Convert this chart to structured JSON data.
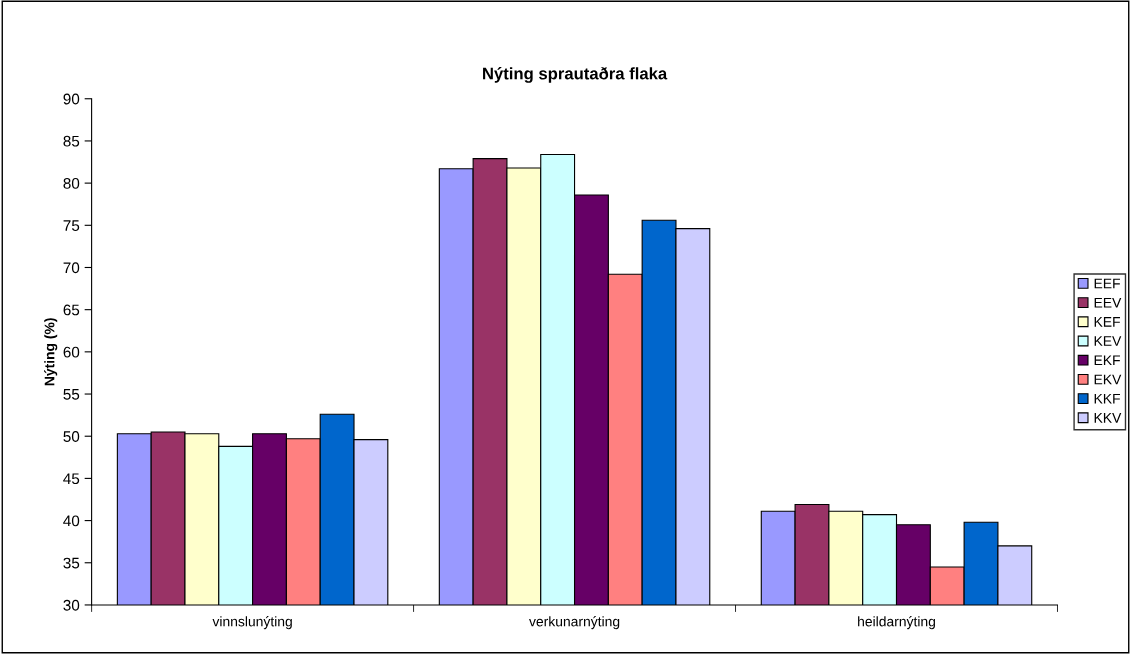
{
  "chart_data": {
    "type": "bar",
    "title": "Nýting sprautaðra flaka",
    "ylabel": "Nýting (%)",
    "categories": [
      "vinnslunýting",
      "verkunarnýting",
      "heildarnýting"
    ],
    "series": [
      {
        "name": "EEF",
        "color": "#9999ff",
        "values": [
          50.3,
          81.7,
          41.1
        ]
      },
      {
        "name": "EEV",
        "color": "#993366",
        "values": [
          50.5,
          82.9,
          41.9
        ]
      },
      {
        "name": "KEF",
        "color": "#ffffcc",
        "values": [
          50.3,
          81.8,
          41.1
        ]
      },
      {
        "name": "KEV",
        "color": "#ccffff",
        "values": [
          48.8,
          83.4,
          40.7
        ]
      },
      {
        "name": "EKF",
        "color": "#660066",
        "values": [
          50.3,
          78.6,
          39.5
        ]
      },
      {
        "name": "EKV",
        "color": "#ff8080",
        "values": [
          49.7,
          69.2,
          34.5
        ]
      },
      {
        "name": "KKF",
        "color": "#0066cc",
        "values": [
          52.6,
          75.6,
          39.8
        ]
      },
      {
        "name": "KKV",
        "color": "#ccccff",
        "values": [
          49.6,
          74.6,
          37.0
        ]
      }
    ],
    "ylim": [
      30,
      90
    ],
    "yticks": [
      30,
      35,
      40,
      45,
      50,
      55,
      60,
      65,
      70,
      75,
      80,
      85,
      90
    ],
    "grid": false,
    "legend": "right"
  }
}
